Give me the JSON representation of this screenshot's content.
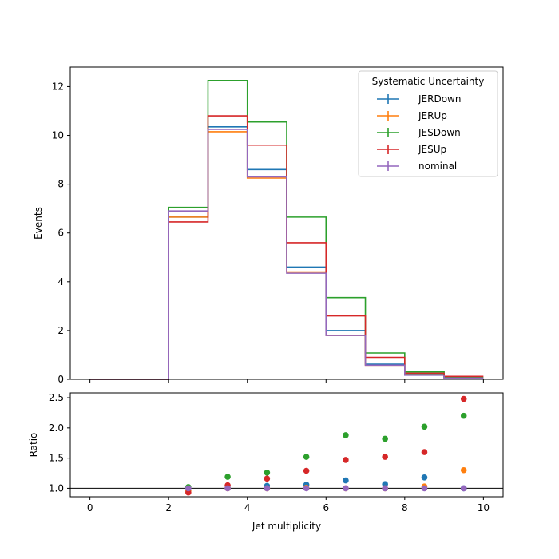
{
  "chart_data": [
    {
      "type": "step",
      "panel": "main",
      "ylabel": "Events",
      "xlim": [
        -0.5,
        10.5
      ],
      "ylim": [
        0,
        12.8
      ],
      "yticks": [
        0,
        2,
        4,
        6,
        8,
        10,
        12
      ],
      "bin_edges": [
        0,
        1,
        2,
        3,
        4,
        5,
        6,
        7,
        8,
        9,
        10
      ],
      "legend": {
        "title": "Systematic Uncertainty",
        "placement": "top-right"
      },
      "series": [
        {
          "name": "JERDown",
          "color": "#1f77b4",
          "values": [
            0,
            0,
            6.65,
            10.35,
            8.6,
            4.6,
            2.0,
            0.62,
            0.2,
            0.05
          ]
        },
        {
          "name": "JERUp",
          "color": "#ff7f0e",
          "values": [
            0,
            0,
            6.65,
            10.15,
            8.25,
            4.4,
            1.8,
            0.58,
            0.18,
            0.05
          ]
        },
        {
          "name": "JESDown",
          "color": "#2ca02c",
          "values": [
            0,
            0,
            7.05,
            12.25,
            10.55,
            6.65,
            3.35,
            1.08,
            0.3,
            0.08
          ]
        },
        {
          "name": "JESUp",
          "color": "#d62728",
          "values": [
            0,
            0,
            6.45,
            10.8,
            9.6,
            5.6,
            2.6,
            0.9,
            0.25,
            0.12
          ]
        },
        {
          "name": "nominal",
          "color": "#9467bd",
          "values": [
            0,
            0,
            6.9,
            10.25,
            8.3,
            4.35,
            1.8,
            0.58,
            0.17,
            0.05
          ]
        }
      ]
    },
    {
      "type": "scatter",
      "panel": "ratio",
      "xlabel": "Jet multiplicity",
      "ylabel": "Ratio",
      "xlim": [
        -0.5,
        10.5
      ],
      "ylim": [
        0.86,
        2.58
      ],
      "xticks": [
        0,
        2,
        4,
        6,
        8,
        10
      ],
      "yticks": [
        1.0,
        1.5,
        2.0,
        2.5
      ],
      "reference_line": 1.0,
      "x": [
        2.5,
        3.5,
        4.5,
        5.5,
        6.5,
        7.5,
        8.5,
        9.5
      ],
      "series": [
        {
          "name": "JERDown",
          "color": "#1f77b4",
          "values": [
            0.96,
            1.01,
            1.04,
            1.06,
            1.13,
            1.07,
            1.18,
            1.0
          ]
        },
        {
          "name": "JERUp",
          "color": "#ff7f0e",
          "values": [
            0.96,
            1.0,
            1.0,
            1.01,
            1.0,
            1.0,
            1.03,
            1.3
          ]
        },
        {
          "name": "JESDown",
          "color": "#2ca02c",
          "values": [
            1.02,
            1.19,
            1.26,
            1.52,
            1.88,
            1.82,
            2.02,
            2.2
          ]
        },
        {
          "name": "JESUp",
          "color": "#d62728",
          "values": [
            0.93,
            1.05,
            1.16,
            1.29,
            1.47,
            1.52,
            1.6,
            2.48
          ]
        },
        {
          "name": "nominal",
          "color": "#9467bd",
          "values": [
            1.0,
            1.0,
            1.0,
            1.0,
            1.0,
            1.0,
            1.0,
            1.0
          ]
        }
      ]
    }
  ]
}
